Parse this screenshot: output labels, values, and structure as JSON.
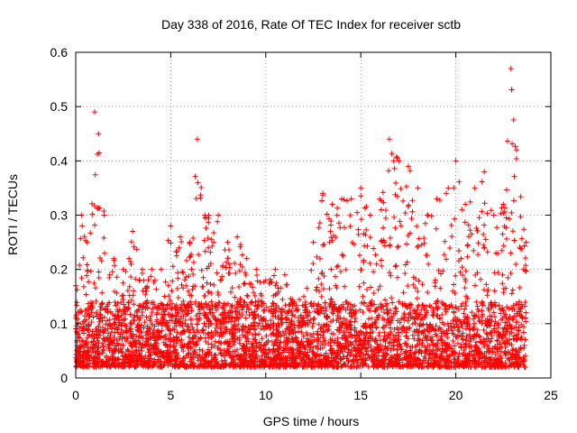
{
  "chart_data": {
    "type": "scatter",
    "title": "Day 338 of 2016, Rate Of TEC Index for receiver sctb",
    "xlabel": "GPS time / hours",
    "ylabel": "ROTI / TECUs",
    "xlim": [
      0,
      25
    ],
    "ylim": [
      0,
      0.6
    ],
    "xticks": [
      0,
      5,
      10,
      15,
      20,
      25
    ],
    "yticks": [
      0,
      0.1,
      0.2,
      0.3,
      0.4,
      0.5,
      0.6
    ],
    "xtick_labels": [
      "0",
      "5",
      "10",
      "15",
      "20",
      "25"
    ],
    "ytick_labels": [
      "0",
      "0.1",
      "0.2",
      "0.3",
      "0.4",
      "0.5",
      "0.6"
    ],
    "grid": true,
    "marker": "+",
    "color": "#ff0000",
    "series": [
      {
        "name": "ROTI",
        "description": "dense cloud of per-satellite ROTI samples; approximate upper envelope listed as [hour, ROTI] peaks",
        "envelope": [
          [
            0.0,
            0.17
          ],
          [
            0.3,
            0.3
          ],
          [
            0.6,
            0.25
          ],
          [
            1.0,
            0.49
          ],
          [
            1.2,
            0.45
          ],
          [
            1.5,
            0.3
          ],
          [
            2.0,
            0.22
          ],
          [
            2.5,
            0.2
          ],
          [
            3.0,
            0.27
          ],
          [
            3.5,
            0.2
          ],
          [
            4.0,
            0.2
          ],
          [
            4.5,
            0.2
          ],
          [
            5.0,
            0.28
          ],
          [
            5.5,
            0.26
          ],
          [
            6.0,
            0.25
          ],
          [
            6.4,
            0.44
          ],
          [
            6.8,
            0.3
          ],
          [
            7.0,
            0.3
          ],
          [
            7.5,
            0.3
          ],
          [
            8.0,
            0.25
          ],
          [
            8.5,
            0.26
          ],
          [
            9.0,
            0.22
          ],
          [
            9.5,
            0.2
          ],
          [
            10.0,
            0.18
          ],
          [
            10.5,
            0.2
          ],
          [
            11.0,
            0.19
          ],
          [
            11.5,
            0.14
          ],
          [
            12.0,
            0.15
          ],
          [
            12.5,
            0.25
          ],
          [
            13.0,
            0.34
          ],
          [
            13.5,
            0.32
          ],
          [
            14.0,
            0.33
          ],
          [
            14.5,
            0.33
          ],
          [
            15.0,
            0.35
          ],
          [
            15.5,
            0.3
          ],
          [
            16.0,
            0.33
          ],
          [
            16.5,
            0.44
          ],
          [
            17.0,
            0.4
          ],
          [
            17.5,
            0.39
          ],
          [
            18.0,
            0.35
          ],
          [
            18.5,
            0.3
          ],
          [
            19.0,
            0.33
          ],
          [
            19.5,
            0.34
          ],
          [
            20.0,
            0.4
          ],
          [
            20.5,
            0.32
          ],
          [
            21.0,
            0.35
          ],
          [
            21.5,
            0.38
          ],
          [
            22.0,
            0.3
          ],
          [
            22.5,
            0.32
          ],
          [
            22.9,
            0.57
          ],
          [
            23.2,
            0.42
          ],
          [
            23.7,
            0.25
          ]
        ],
        "typical_floor": 0.02,
        "typical_band": [
          0.02,
          0.12
        ]
      }
    ]
  }
}
